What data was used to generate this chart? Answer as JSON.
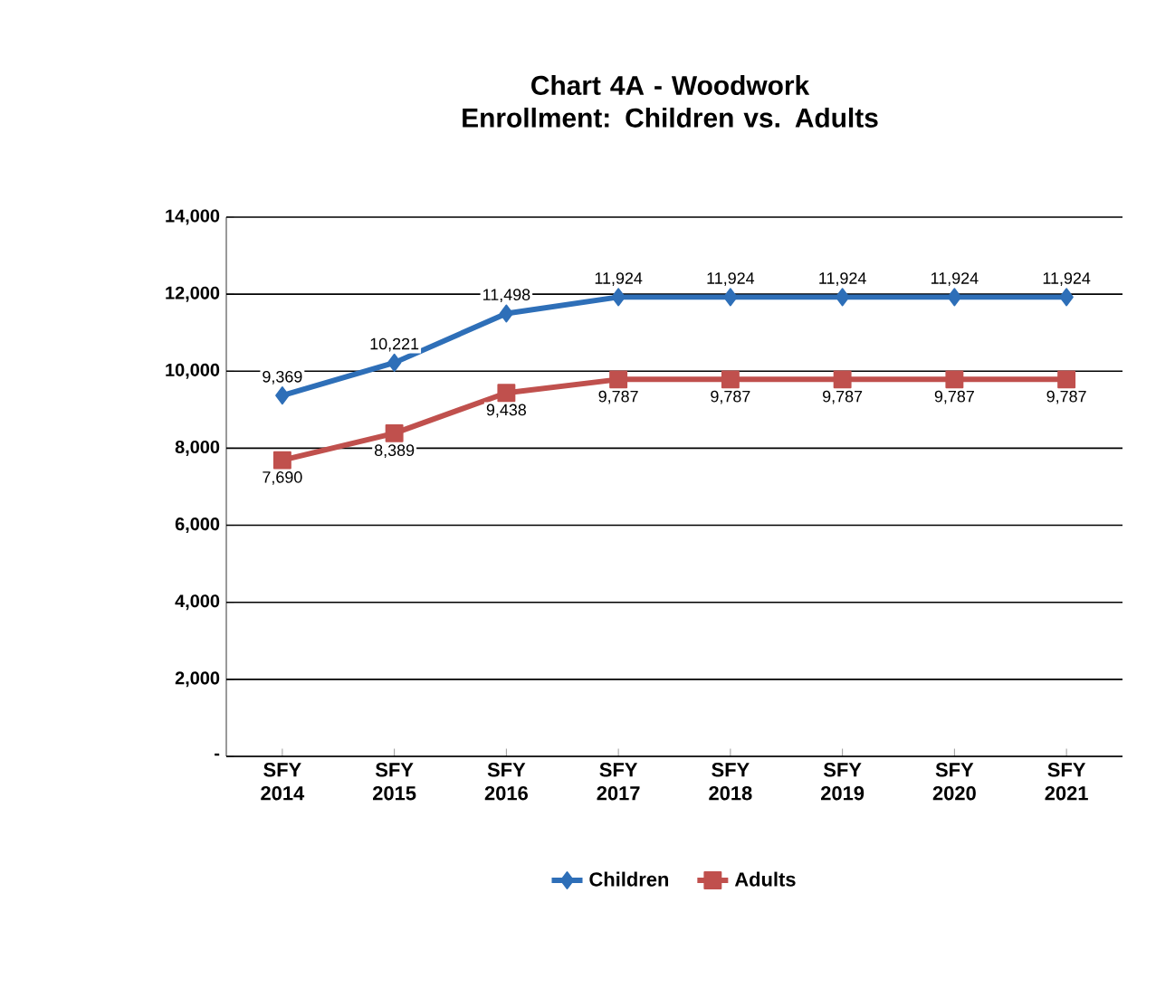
{
  "chart_data": {
    "type": "line",
    "title": "Chart  4A - Woodwork Enrollment: Children vs. Adults",
    "categories": [
      "SFY 2014",
      "SFY 2015",
      "SFY 2016",
      "SFY 2017",
      "SFY 2018",
      "SFY 2019",
      "SFY 2020",
      "SFY 2021"
    ],
    "series": [
      {
        "name": "Children",
        "color": "#2e6fb8",
        "marker": "diamond",
        "values": [
          9369,
          10221,
          11498,
          11924,
          11924,
          11924,
          11924,
          11924
        ],
        "value_labels": [
          "9,369",
          "10,221",
          "11,498",
          "11,924",
          "11,924",
          "11,924",
          "11,924",
          "11,924"
        ]
      },
      {
        "name": "Adults",
        "color": "#c0504d",
        "marker": "square",
        "values": [
          7690,
          8389,
          9438,
          9787,
          9787,
          9787,
          9787,
          9787
        ],
        "value_labels": [
          "7,690",
          "8,389",
          "9,438",
          "9,787",
          "9,787",
          "9,787",
          "9,787",
          "9,787"
        ]
      }
    ],
    "ylim": [
      0,
      14000
    ],
    "yticks": [
      {
        "value": 0,
        "label": "-"
      },
      {
        "value": 2000,
        "label": "2,000"
      },
      {
        "value": 4000,
        "label": "4,000"
      },
      {
        "value": 6000,
        "label": "6,000"
      },
      {
        "value": 8000,
        "label": "8,000"
      },
      {
        "value": 10000,
        "label": "10,000"
      },
      {
        "value": 12000,
        "label": "12,000"
      },
      {
        "value": 14000,
        "label": "14,000"
      }
    ],
    "grid": "y",
    "legend": "bottom",
    "line_style": "solid"
  }
}
